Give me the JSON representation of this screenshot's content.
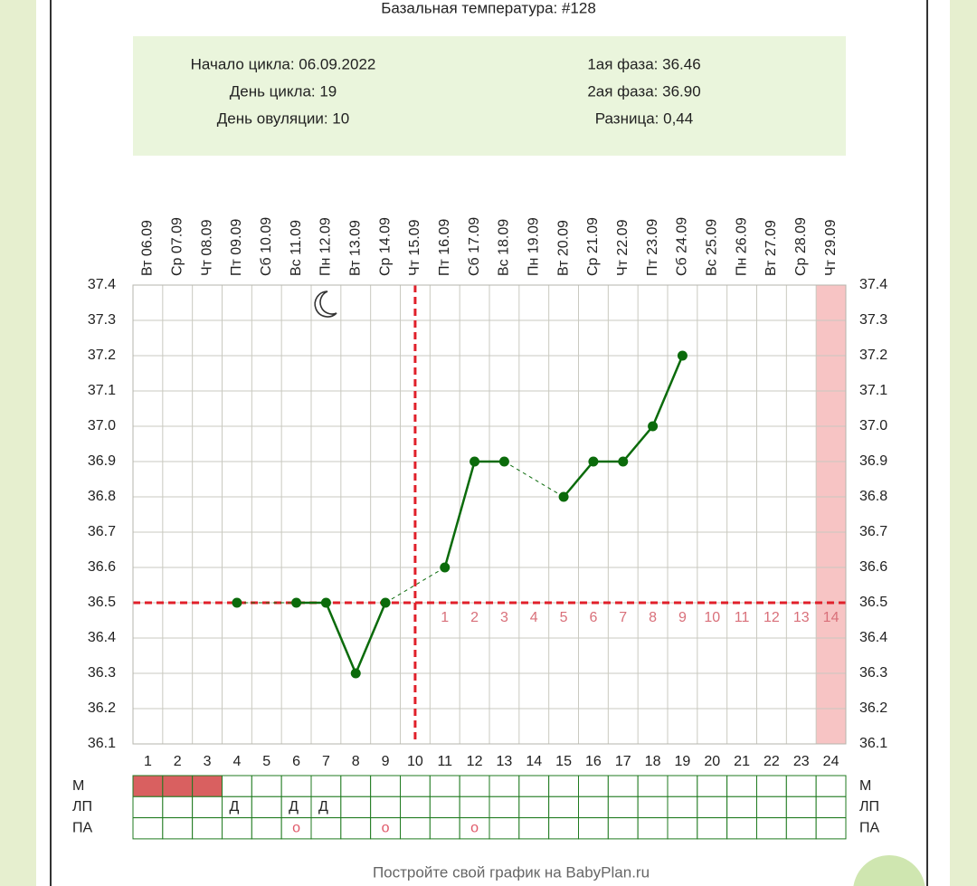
{
  "chart_data": {
    "type": "line",
    "title": "Базальная температура: #128",
    "info_left": [
      "Начало цикла: 06.09.2022",
      "День цикла: 19",
      "День овуляции: 10"
    ],
    "info_right": [
      "1ая фаза: 36.46",
      "2ая фаза: 36.90",
      "Разница: 0,44"
    ],
    "categories": [
      "Вт 06.09",
      "Ср 07.09",
      "Чт 08.09",
      "Пт 09.09",
      "Сб 10.09",
      "Вс 11.09",
      "Пн 12.09",
      "Вт 13.09",
      "Ср 14.09",
      "Чт 15.09",
      "Пт 16.09",
      "Сб 17.09",
      "Вс 18.09",
      "Пн 19.09",
      "Вт 20.09",
      "Ср 21.09",
      "Чт 22.09",
      "Пт 23.09",
      "Сб 24.09",
      "Вс 25.09",
      "Пн 26.09",
      "Вт 27.09",
      "Ср 28.09",
      "Чт 29.09"
    ],
    "cycle_days": [
      1,
      2,
      3,
      4,
      5,
      6,
      7,
      8,
      9,
      10,
      11,
      12,
      13,
      14,
      15,
      16,
      17,
      18,
      19,
      20,
      21,
      22,
      23,
      24
    ],
    "series": [
      {
        "color": "#0b6b0b",
        "values": [
          null,
          null,
          null,
          36.5,
          null,
          36.5,
          36.5,
          36.3,
          36.5,
          null,
          36.6,
          36.9,
          36.9,
          null,
          36.8,
          36.9,
          36.9,
          37.0,
          37.2,
          null,
          null,
          null,
          null,
          null
        ]
      }
    ],
    "ylim": [
      36.1,
      37.4
    ],
    "yticks": [
      37.4,
      37.3,
      37.2,
      37.1,
      {
        "value": 37.0,
        "label": "37.0"
      },
      36.9,
      36.8,
      36.7,
      36.6,
      36.5,
      36.4,
      36.3,
      36.2,
      36.1
    ],
    "grid": true,
    "coverline": 36.5,
    "ovulation_day": 10,
    "line_color": "#e0202a",
    "highlight_days": [
      24
    ],
    "luteal_labels": [
      null,
      null,
      null,
      null,
      null,
      null,
      null,
      null,
      null,
      null,
      "1",
      "2",
      "3",
      "4",
      "5",
      "6",
      "7",
      "8",
      "9",
      "10",
      "11",
      "12",
      "13",
      "14"
    ],
    "rows": [
      {
        "label": "М",
        "cells": [
          true,
          true,
          true,
          false,
          false,
          false,
          false,
          false,
          false,
          false,
          false,
          false,
          false,
          false,
          false,
          false,
          false,
          false,
          false,
          false,
          false,
          false,
          false,
          false
        ]
      },
      {
        "label": "ЛП",
        "cells": [
          null,
          null,
          null,
          "Д",
          null,
          "Д",
          "Д",
          null,
          null,
          null,
          null,
          null,
          null,
          null,
          null,
          null,
          null,
          null,
          null,
          null,
          null,
          null,
          null,
          null
        ]
      },
      {
        "label": "ПА",
        "cells": [
          null,
          null,
          null,
          null,
          null,
          "о",
          null,
          null,
          "о",
          null,
          null,
          "о",
          null,
          null,
          null,
          null,
          null,
          null,
          null,
          null,
          null,
          null,
          null,
          null
        ]
      }
    ],
    "footer": "Постройте свой график на BabyPlan.ru"
  }
}
